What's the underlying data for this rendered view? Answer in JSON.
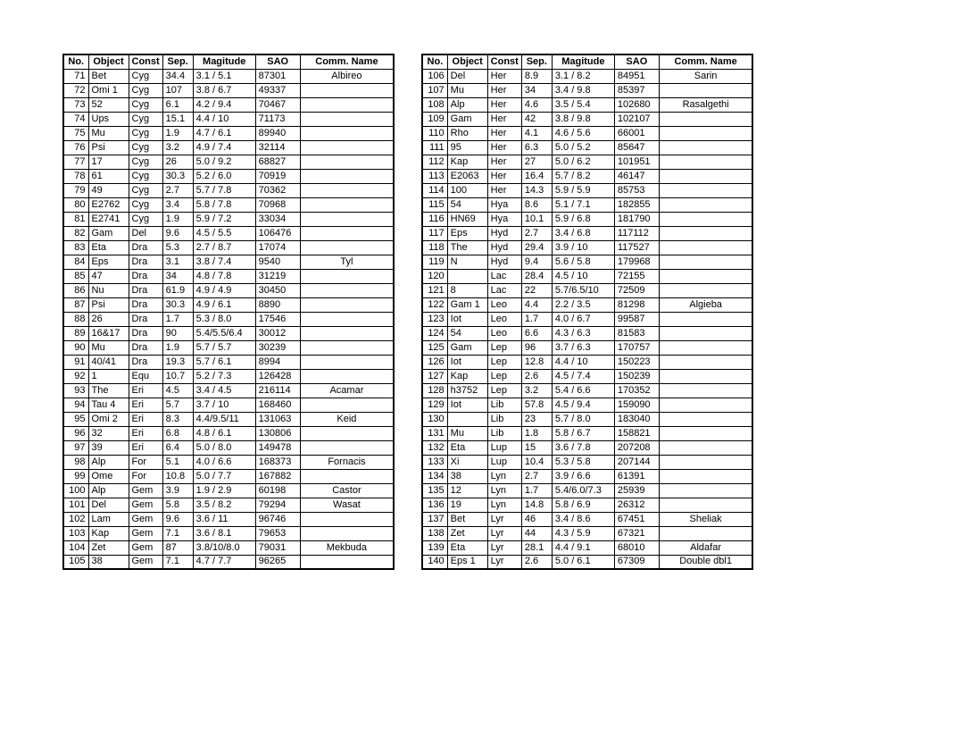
{
  "columns": [
    "No.",
    "Object",
    "Const",
    "Sep.",
    "Magitude",
    "SAO",
    "Comm. Name"
  ],
  "leftTable": [
    [
      "71",
      "Bet",
      "Cyg",
      "34.4",
      "3.1 / 5.1",
      "87301",
      "Albireo"
    ],
    [
      "72",
      "Omi 1",
      "Cyg",
      "107",
      "3.8 / 6.7",
      "49337",
      ""
    ],
    [
      "73",
      "52",
      "Cyg",
      "6.1",
      "4.2 / 9.4",
      "70467",
      ""
    ],
    [
      "74",
      "Ups",
      "Cyg",
      "15.1",
      "4.4 / 10",
      "71173",
      ""
    ],
    [
      "75",
      "Mu",
      "Cyg",
      "1.9",
      "4.7 / 6.1",
      "89940",
      ""
    ],
    [
      "76",
      "Psi",
      "Cyg",
      "3.2",
      "4.9 / 7.4",
      "32114",
      ""
    ],
    [
      "77",
      "17",
      "Cyg",
      "26",
      "5.0 / 9.2",
      "68827",
      ""
    ],
    [
      "78",
      "61",
      "Cyg",
      "30.3",
      "5.2 / 6.0",
      "70919",
      ""
    ],
    [
      "79",
      "49",
      "Cyg",
      "2.7",
      "5.7 / 7.8",
      "70362",
      ""
    ],
    [
      "80",
      "E2762",
      "Cyg",
      "3.4",
      "5.8 / 7.8",
      "70968",
      ""
    ],
    [
      "81",
      "E2741",
      "Cyg",
      "1.9",
      "5.9 / 7.2",
      "33034",
      ""
    ],
    [
      "82",
      "Gam",
      "Del",
      "9.6",
      "4.5 / 5.5",
      "106476",
      ""
    ],
    [
      "83",
      "Eta",
      "Dra",
      "5.3",
      "2.7 / 8.7",
      "17074",
      ""
    ],
    [
      "84",
      "Eps",
      "Dra",
      "3.1",
      "3.8 / 7.4",
      "9540",
      "Tyl"
    ],
    [
      "85",
      "47",
      "Dra",
      "34",
      "4.8 / 7.8",
      "31219",
      ""
    ],
    [
      "86",
      "Nu",
      "Dra",
      "61.9",
      "4.9 / 4.9",
      "30450",
      ""
    ],
    [
      "87",
      "Psi",
      "Dra",
      "30.3",
      "4.9 / 6.1",
      "8890",
      ""
    ],
    [
      "88",
      "26",
      "Dra",
      "1.7",
      "5.3 / 8.0",
      "17546",
      ""
    ],
    [
      "89",
      "16&17",
      "Dra",
      "90",
      "5.4/5.5/6.4",
      "30012",
      ""
    ],
    [
      "90",
      "Mu",
      "Dra",
      "1.9",
      "5.7 / 5.7",
      "30239",
      ""
    ],
    [
      "91",
      "40/41",
      "Dra",
      "19.3",
      "5.7 / 6.1",
      "8994",
      ""
    ],
    [
      "92",
      "1",
      "Equ",
      "10.7",
      "5.2 / 7.3",
      "126428",
      ""
    ],
    [
      "93",
      "The",
      "Eri",
      "4.5",
      "3.4 / 4.5",
      "216114",
      "Acamar"
    ],
    [
      "94",
      "Tau 4",
      "Eri",
      "5.7",
      "3.7 / 10",
      "168460",
      ""
    ],
    [
      "95",
      "Omi 2",
      "Eri",
      "8.3",
      "4.4/9.5/11",
      "131063",
      "Keid"
    ],
    [
      "96",
      "32",
      "Eri",
      "6.8",
      "4.8 / 6.1",
      "130806",
      ""
    ],
    [
      "97",
      "39",
      "Eri",
      "6.4",
      "5.0 / 8.0",
      "149478",
      ""
    ],
    [
      "98",
      "Alp",
      "For",
      "5.1",
      "4.0 / 6.6",
      "168373",
      "Fornacis"
    ],
    [
      "99",
      "Ome",
      "For",
      "10.8",
      "5.0 / 7.7",
      "167882",
      ""
    ],
    [
      "100",
      "Alp",
      "Gem",
      "3.9",
      "1.9 / 2.9",
      "60198",
      "Castor"
    ],
    [
      "101",
      "Del",
      "Gem",
      "5.8",
      "3.5 / 8.2",
      "79294",
      "Wasat"
    ],
    [
      "102",
      "Lam",
      "Gem",
      "9.6",
      "3.6 / 11",
      "96746",
      ""
    ],
    [
      "103",
      "Kap",
      "Gem",
      "7.1",
      "3.6 / 8.1",
      "79653",
      ""
    ],
    [
      "104",
      "Zet",
      "Gem",
      "87",
      "3.8/10/8.0",
      "79031",
      "Mekbuda"
    ],
    [
      "105",
      "38",
      "Gem",
      "7.1",
      "4.7 / 7.7",
      "96265",
      ""
    ]
  ],
  "rightTable": [
    [
      "106",
      "Del",
      "Her",
      "8.9",
      "3.1 / 8.2",
      "84951",
      "Sarin"
    ],
    [
      "107",
      "Mu",
      "Her",
      "34",
      "3.4 / 9.8",
      "85397",
      ""
    ],
    [
      "108",
      "Alp",
      "Her",
      "4.6",
      "3.5 / 5.4",
      "102680",
      "Rasalgethi"
    ],
    [
      "109",
      "Gam",
      "Her",
      "42",
      "3.8 / 9.8",
      "102107",
      ""
    ],
    [
      "110",
      "Rho",
      "Her",
      "4.1",
      "4.6 / 5.6",
      "66001",
      ""
    ],
    [
      "111",
      "95",
      "Her",
      "6.3",
      "5.0 / 5.2",
      "85647",
      ""
    ],
    [
      "112",
      "Kap",
      "Her",
      "27",
      "5.0 / 6.2",
      "101951",
      ""
    ],
    [
      "113",
      "E2063",
      "Her",
      "16.4",
      "5.7 / 8.2",
      "46147",
      ""
    ],
    [
      "114",
      "100",
      "Her",
      "14.3",
      "5.9 / 5.9",
      "85753",
      ""
    ],
    [
      "115",
      "54",
      "Hya",
      "8.6",
      "5.1 / 7.1",
      "182855",
      ""
    ],
    [
      "116",
      "HN69",
      "Hya",
      "10.1",
      "5.9 / 6.8",
      "181790",
      ""
    ],
    [
      "117",
      "Eps",
      "Hyd",
      "2.7",
      "3.4 / 6.8",
      "117112",
      ""
    ],
    [
      "118",
      "The",
      "Hyd",
      "29.4",
      "3.9 / 10",
      "117527",
      ""
    ],
    [
      "119",
      "N",
      "Hyd",
      "9.4",
      "5.6 / 5.8",
      "179968",
      ""
    ],
    [
      "120",
      "",
      "Lac",
      "28.4",
      "4.5 / 10",
      "72155",
      ""
    ],
    [
      "121",
      "8",
      "Lac",
      "22",
      "5.7/6.5/10",
      "72509",
      ""
    ],
    [
      "122",
      "Gam 1",
      "Leo",
      "4.4",
      "2.2 / 3.5",
      "81298",
      "Algieba"
    ],
    [
      "123",
      "Iot",
      "Leo",
      "1.7",
      "4.0 / 6.7",
      "99587",
      ""
    ],
    [
      "124",
      "54",
      "Leo",
      "6.6",
      "4.3 / 6.3",
      "81583",
      ""
    ],
    [
      "125",
      "Gam",
      "Lep",
      "96",
      "3.7 / 6.3",
      "170757",
      ""
    ],
    [
      "126",
      "Iot",
      "Lep",
      "12.8",
      "4.4 / 10",
      "150223",
      ""
    ],
    [
      "127",
      "Kap",
      "Lep",
      "2.6",
      "4.5 / 7.4",
      "150239",
      ""
    ],
    [
      "128",
      "h3752",
      "Lep",
      "3.2",
      "5.4 / 6.6",
      "170352",
      ""
    ],
    [
      "129",
      "Iot",
      "Lib",
      "57.8",
      "4.5 / 9.4",
      "159090",
      ""
    ],
    [
      "130",
      "",
      "Lib",
      "23",
      "5.7 / 8.0",
      "183040",
      ""
    ],
    [
      "131",
      "Mu",
      "Lib",
      "1.8",
      "5.8 / 6.7",
      "158821",
      ""
    ],
    [
      "132",
      "Eta",
      "Lup",
      "15",
      "3.6 / 7.8",
      "207208",
      ""
    ],
    [
      "133",
      "Xi",
      "Lup",
      "10.4",
      "5.3 / 5.8",
      "207144",
      ""
    ],
    [
      "134",
      "38",
      "Lyn",
      "2.7",
      "3.9 / 6.6",
      "61391",
      ""
    ],
    [
      "135",
      "12",
      "Lyn",
      "1.7",
      "5.4/6.0/7.3",
      "25939",
      ""
    ],
    [
      "136",
      "19",
      "Lyn",
      "14.8",
      "5.8 / 6.9",
      "26312",
      ""
    ],
    [
      "137",
      "Bet",
      "Lyr",
      "46",
      "3.4 / 8.6",
      "67451",
      "Sheliak"
    ],
    [
      "138",
      "Zet",
      "Lyr",
      "44",
      "4.3 / 5.9",
      "67321",
      ""
    ],
    [
      "139",
      "Eta",
      "Lyr",
      "28.1",
      "4.4 / 9.1",
      "68010",
      "Aldafar"
    ],
    [
      "140",
      "Eps 1",
      "Lyr",
      "2.6",
      "5.0 / 6.1",
      "67309",
      "Double dbl1"
    ]
  ]
}
